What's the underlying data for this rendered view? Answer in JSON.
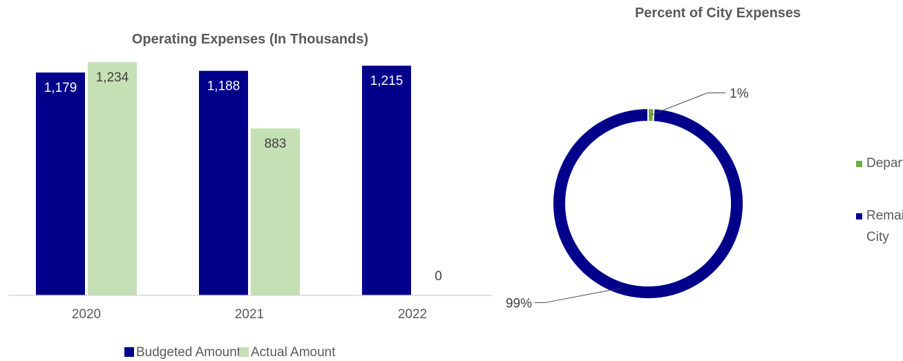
{
  "chart_data": [
    {
      "type": "bar",
      "title": "Operating Expenses (In Thousands)",
      "categories": [
        "2020",
        "2021",
        "2022"
      ],
      "series": [
        {
          "name": "Budgeted Amount",
          "values": [
            1179,
            1188,
            1215
          ],
          "labels": [
            "1,179",
            "1,188",
            "1,215"
          ],
          "color": "#00008B"
        },
        {
          "name": "Actual Amount",
          "values": [
            1234,
            883,
            0
          ],
          "labels": [
            "1,234",
            "883",
            "0"
          ],
          "color": "#C5E0B4"
        }
      ],
      "ylim": [
        0,
        1234
      ],
      "grid": false,
      "legend": "bottom"
    },
    {
      "type": "pie",
      "title": "Percent of City Expenses",
      "labels": [
        "Department",
        "Remainder of City"
      ],
      "legend_lines": [
        [
          "Department"
        ],
        [
          "Remainder of",
          "City"
        ]
      ],
      "values": [
        1,
        99
      ],
      "data_labels": [
        "1%",
        "99%"
      ],
      "colors": [
        "#70AD47",
        "#00008B"
      ],
      "legend": "right"
    }
  ]
}
